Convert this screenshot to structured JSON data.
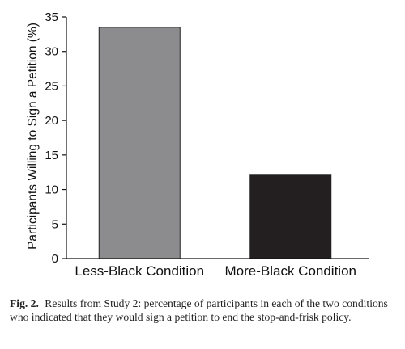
{
  "chart_data": {
    "type": "bar",
    "categories": [
      "Less-Black Condition",
      "More-Black Condition"
    ],
    "values": [
      33.5,
      12.2
    ],
    "title": "",
    "xlabel": "",
    "ylabel": "Participants Willing to Sign a Petition (%)",
    "ylim": [
      0,
      35
    ],
    "yticks": [
      0,
      5,
      10,
      15,
      20,
      25,
      30,
      35
    ],
    "colors": [
      "#8c8c8e",
      "#231f20"
    ],
    "grid": false
  },
  "caption": {
    "label": "Fig. 2.",
    "text": "Results from Study 2: percentage of participants in each of the two conditions who indicated that they would sign a petition to end the stop-and-frisk policy."
  }
}
